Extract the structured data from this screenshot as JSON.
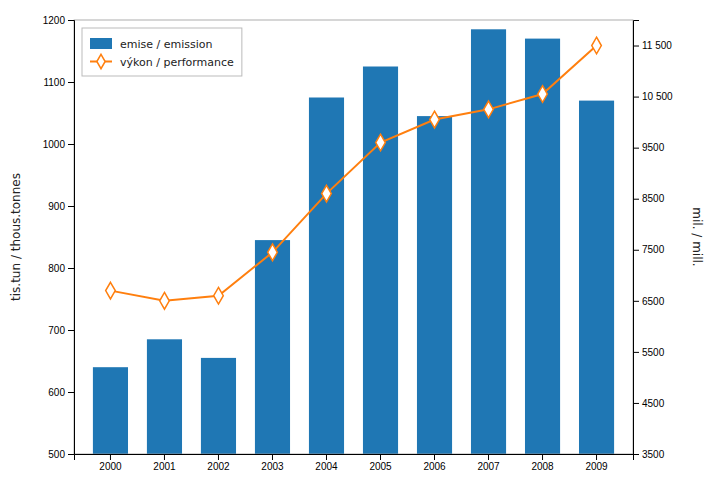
{
  "chart_data": {
    "type": "bar",
    "categories": [
      "2000",
      "2001",
      "2002",
      "2003",
      "2004",
      "2005",
      "2006",
      "2007",
      "2008",
      "2009"
    ],
    "series": [
      {
        "name": "emise / emission",
        "type": "bar",
        "values": [
          640,
          685,
          655,
          845,
          1075,
          1125,
          1045,
          1185,
          1170,
          1070
        ]
      },
      {
        "name": "výkon / performance",
        "type": "line",
        "axis": "y2",
        "marker": "diamond",
        "values": [
          6700,
          6500,
          6600,
          7450,
          8600,
          9600,
          10050,
          10250,
          10550,
          11500
        ]
      }
    ],
    "ylabel": "tis.tun / thous.tonnes",
    "y2label": "mil. / mill.",
    "ylim": [
      500,
      1200
    ],
    "yticks": [
      500,
      600,
      700,
      800,
      900,
      1000,
      1100,
      1200
    ],
    "y2lim": [
      3500,
      12000
    ],
    "y2ticks": [
      3500,
      4500,
      5500,
      6500,
      7500,
      8500,
      9500,
      {
        "value": 10500,
        "label": "10 500"
      },
      {
        "value": 11500,
        "label": "11 500"
      }
    ],
    "grid": false,
    "legend": "upper left"
  }
}
